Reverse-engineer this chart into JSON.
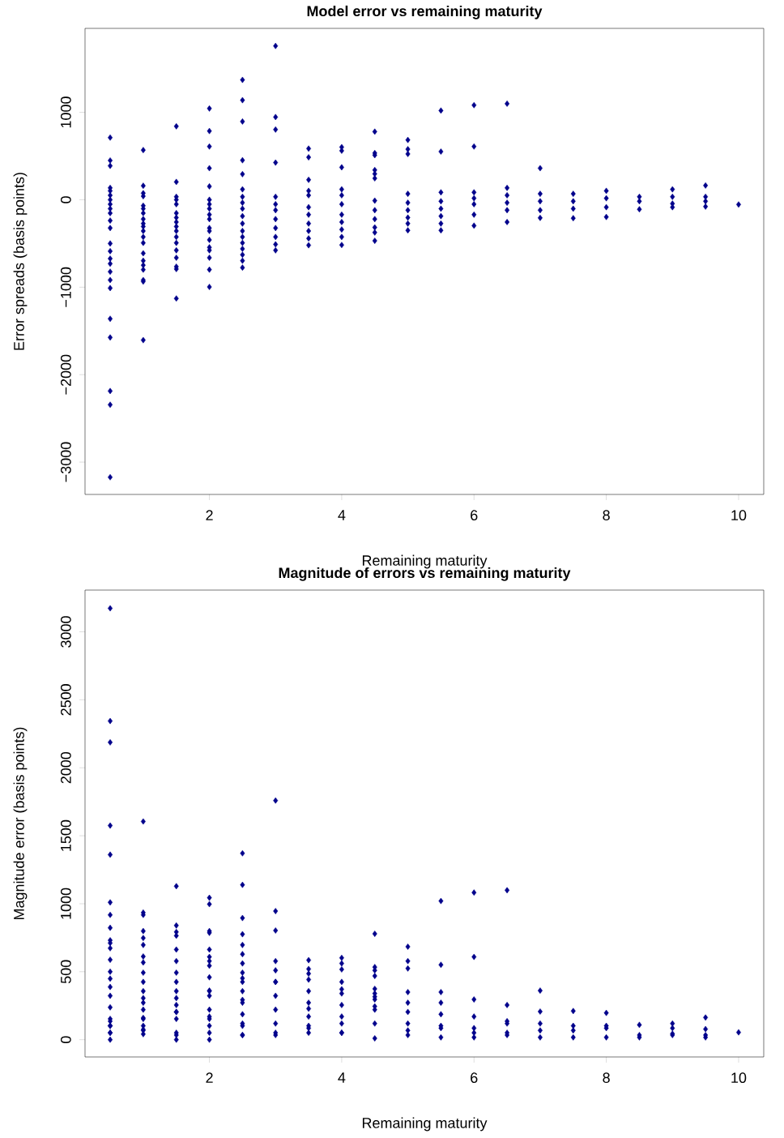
{
  "chart_data": [
    {
      "type": "scatter",
      "title": "Model error vs remaining maturity",
      "xlabel": "Remaining maturity",
      "ylabel": "Error spreads (basis points)",
      "x": [
        0.5,
        0.5,
        0.5,
        0.5,
        0.5,
        0.5,
        0.5,
        0.5,
        0.5,
        0.5,
        0.5,
        0.5,
        0.5,
        0.5,
        0.5,
        0.5,
        0.5,
        0.5,
        0.5,
        0.5,
        0.5,
        0.5,
        0.5,
        0.5,
        1,
        1,
        1,
        1,
        1,
        1,
        1,
        1,
        1,
        1,
        1,
        1,
        1,
        1,
        1,
        1,
        1,
        1,
        1,
        1,
        1.5,
        1.5,
        1.5,
        1.5,
        1.5,
        1.5,
        1.5,
        1.5,
        1.5,
        1.5,
        1.5,
        1.5,
        1.5,
        1.5,
        1.5,
        1.5,
        1.5,
        2,
        2,
        2,
        2,
        2,
        2,
        2,
        2,
        2,
        2,
        2,
        2,
        2,
        2,
        2,
        2,
        2,
        2,
        2.5,
        2.5,
        2.5,
        2.5,
        2.5,
        2.5,
        2.5,
        2.5,
        2.5,
        2.5,
        2.5,
        2.5,
        2.5,
        2.5,
        2.5,
        2.5,
        2.5,
        2.5,
        3,
        3,
        3,
        3,
        3,
        3,
        3,
        3,
        3,
        3,
        3,
        3,
        3.5,
        3.5,
        3.5,
        3.5,
        3.5,
        3.5,
        3.5,
        3.5,
        3.5,
        3.5,
        3.5,
        4,
        4,
        4,
        4,
        4,
        4,
        4,
        4,
        4,
        4,
        4,
        4.5,
        4.5,
        4.5,
        4.5,
        4.5,
        4.5,
        4.5,
        4.5,
        4.5,
        4.5,
        4.5,
        4.5,
        5,
        5,
        5,
        5,
        5,
        5,
        5,
        5,
        5,
        5.5,
        5.5,
        5.5,
        5.5,
        5.5,
        5.5,
        5.5,
        5.5,
        6,
        6,
        6,
        6,
        6,
        6,
        6,
        6.5,
        6.5,
        6.5,
        6.5,
        6.5,
        6.5,
        7,
        7,
        7,
        7,
        7,
        7.5,
        7.5,
        7.5,
        7.5,
        8,
        8,
        8,
        8,
        8.5,
        8.5,
        8.5,
        9,
        9,
        9,
        9,
        9.5,
        9.5,
        9.5,
        9.5,
        10
      ],
      "values": [
        711,
        449,
        388,
        136,
        102,
        51,
        0,
        -51,
        -102,
        -153,
        -238,
        -323,
        -500,
        -588,
        -673,
        -731,
        -823,
        -918,
        -1010,
        -1361,
        -1575,
        -2187,
        -2344,
        -3173,
        568,
        160,
        75,
        41,
        -68,
        -102,
        -153,
        -221,
        -272,
        -306,
        -357,
        -425,
        -493,
        -612,
        -697,
        -748,
        -799,
        -918,
        -935,
        -1605,
        840,
        204,
        34,
        0,
        -51,
        -153,
        -204,
        -255,
        -306,
        -357,
        -425,
        -493,
        -578,
        -663,
        -765,
        -792,
        -1129,
        1044,
        786,
        609,
        361,
        153,
        0,
        -51,
        -102,
        -170,
        -221,
        -323,
        -357,
        -459,
        -544,
        -578,
        -663,
        -799,
        -997,
        1371,
        1139,
        895,
        452,
        293,
        119,
        34,
        -34,
        -102,
        -187,
        -272,
        -357,
        -425,
        -493,
        -561,
        -629,
        -697,
        -776,
        1759,
        946,
        803,
        425,
        34,
        -51,
        -119,
        -221,
        -323,
        -425,
        -510,
        -578,
        585,
        486,
        228,
        102,
        51,
        -85,
        -170,
        -272,
        -357,
        -442,
        -520,
        602,
        561,
        371,
        119,
        51,
        -51,
        -170,
        -255,
        -340,
        -425,
        -517,
        779,
        534,
        510,
        340,
        296,
        245,
        -10,
        -119,
        -221,
        -316,
        -374,
        -469,
        684,
        578,
        524,
        68,
        -34,
        -119,
        -204,
        -272,
        -350,
        1020,
        551,
        85,
        -17,
        -102,
        -187,
        -272,
        -350,
        1082,
        609,
        85,
        17,
        -51,
        -170,
        -296,
        1099,
        136,
        51,
        -34,
        -119,
        -255,
        361,
        68,
        -17,
        -119,
        -207,
        68,
        -17,
        -102,
        -211,
        102,
        17,
        -85,
        -197,
        34,
        -17,
        -109,
        119,
        34,
        -44,
        -85,
        163,
        34,
        -17,
        -78,
        -54
      ],
      "color": "#00008b",
      "marker": "diamond",
      "grid": false,
      "xlim": [
        0.12,
        10.38
      ],
      "ylim": [
        -3370,
        1960
      ],
      "xticks": [
        2,
        4,
        6,
        8,
        10
      ],
      "yticks": [
        {
          "value": -3000,
          "label": "−3000"
        },
        {
          "value": -2000,
          "label": "−2000"
        },
        {
          "value": -1000,
          "label": "−1000"
        },
        0,
        1000
      ]
    },
    {
      "type": "scatter",
      "title": "Magnitude of errors vs remaining maturity",
      "xlabel": "Remaining maturity",
      "ylabel": "Magnitude error (basis points)",
      "x": [
        0.5,
        0.5,
        0.5,
        0.5,
        0.5,
        0.5,
        0.5,
        0.5,
        0.5,
        0.5,
        0.5,
        0.5,
        0.5,
        0.5,
        0.5,
        0.5,
        0.5,
        0.5,
        0.5,
        0.5,
        0.5,
        0.5,
        0.5,
        0.5,
        1,
        1,
        1,
        1,
        1,
        1,
        1,
        1,
        1,
        1,
        1,
        1,
        1,
        1,
        1,
        1,
        1,
        1,
        1,
        1,
        1.5,
        1.5,
        1.5,
        1.5,
        1.5,
        1.5,
        1.5,
        1.5,
        1.5,
        1.5,
        1.5,
        1.5,
        1.5,
        1.5,
        1.5,
        1.5,
        1.5,
        2,
        2,
        2,
        2,
        2,
        2,
        2,
        2,
        2,
        2,
        2,
        2,
        2,
        2,
        2,
        2,
        2,
        2,
        2.5,
        2.5,
        2.5,
        2.5,
        2.5,
        2.5,
        2.5,
        2.5,
        2.5,
        2.5,
        2.5,
        2.5,
        2.5,
        2.5,
        2.5,
        2.5,
        2.5,
        2.5,
        3,
        3,
        3,
        3,
        3,
        3,
        3,
        3,
        3,
        3,
        3,
        3,
        3.5,
        3.5,
        3.5,
        3.5,
        3.5,
        3.5,
        3.5,
        3.5,
        3.5,
        3.5,
        3.5,
        4,
        4,
        4,
        4,
        4,
        4,
        4,
        4,
        4,
        4,
        4,
        4.5,
        4.5,
        4.5,
        4.5,
        4.5,
        4.5,
        4.5,
        4.5,
        4.5,
        4.5,
        4.5,
        4.5,
        5,
        5,
        5,
        5,
        5,
        5,
        5,
        5,
        5,
        5.5,
        5.5,
        5.5,
        5.5,
        5.5,
        5.5,
        5.5,
        5.5,
        6,
        6,
        6,
        6,
        6,
        6,
        6,
        6.5,
        6.5,
        6.5,
        6.5,
        6.5,
        6.5,
        7,
        7,
        7,
        7,
        7,
        7.5,
        7.5,
        7.5,
        7.5,
        8,
        8,
        8,
        8,
        8.5,
        8.5,
        8.5,
        9,
        9,
        9,
        9,
        9.5,
        9.5,
        9.5,
        9.5,
        10
      ],
      "values": [
        711,
        449,
        388,
        136,
        102,
        51,
        0,
        51,
        102,
        153,
        238,
        323,
        500,
        588,
        673,
        731,
        823,
        918,
        1010,
        1361,
        1575,
        2187,
        2344,
        3173,
        568,
        160,
        75,
        41,
        68,
        102,
        153,
        221,
        272,
        306,
        357,
        425,
        493,
        612,
        697,
        748,
        799,
        918,
        935,
        1605,
        840,
        204,
        34,
        0,
        51,
        153,
        204,
        255,
        306,
        357,
        425,
        493,
        578,
        663,
        765,
        792,
        1129,
        1044,
        786,
        609,
        361,
        153,
        0,
        51,
        102,
        170,
        221,
        323,
        357,
        459,
        544,
        578,
        663,
        799,
        997,
        1371,
        1139,
        895,
        452,
        293,
        119,
        34,
        34,
        102,
        187,
        272,
        357,
        425,
        493,
        561,
        629,
        697,
        776,
        1759,
        946,
        803,
        425,
        34,
        51,
        119,
        221,
        323,
        425,
        510,
        578,
        585,
        486,
        228,
        102,
        51,
        85,
        170,
        272,
        357,
        442,
        520,
        602,
        561,
        371,
        119,
        51,
        51,
        170,
        255,
        340,
        425,
        517,
        779,
        534,
        510,
        340,
        296,
        245,
        10,
        119,
        221,
        316,
        374,
        469,
        684,
        578,
        524,
        68,
        34,
        119,
        204,
        272,
        350,
        1020,
        551,
        85,
        17,
        102,
        187,
        272,
        350,
        1082,
        609,
        85,
        17,
        51,
        170,
        296,
        1099,
        136,
        51,
        34,
        119,
        255,
        361,
        68,
        17,
        119,
        207,
        68,
        17,
        102,
        211,
        102,
        17,
        85,
        197,
        34,
        17,
        109,
        119,
        34,
        44,
        85,
        163,
        34,
        17,
        78,
        54
      ],
      "color": "#00008b",
      "marker": "diamond",
      "grid": false,
      "xlim": [
        0.12,
        10.38
      ],
      "ylim": [
        -127,
        3307
      ],
      "xticks": [
        2,
        4,
        6,
        8,
        10
      ],
      "yticks": [
        0,
        500,
        1000,
        1500,
        2000,
        2500,
        3000
      ]
    }
  ]
}
